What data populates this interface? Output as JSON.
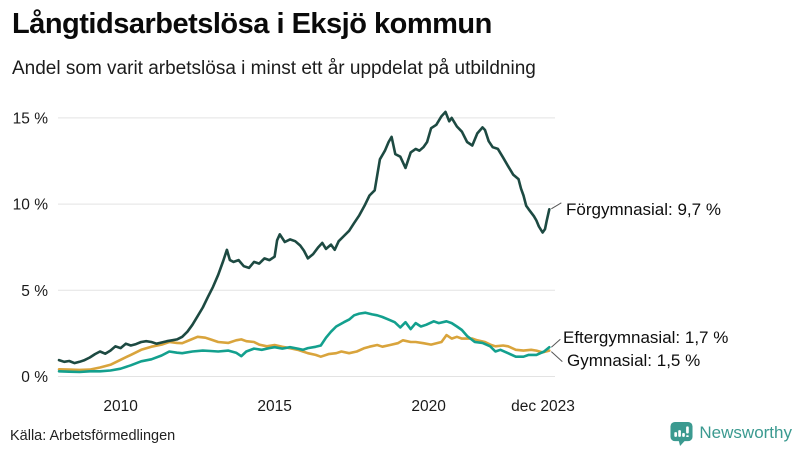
{
  "chart_data": {
    "type": "line",
    "title": "Långtidsarbetslösa i Eksjö kommun",
    "subtitle": "Andel som varit arbetslösa i minst ett år uppdelat på utbildning",
    "xlabel": "",
    "ylabel": "",
    "grid": true,
    "legend_position": "end-of-line-annotations",
    "x_axis": {
      "range": [
        2008,
        2024.2
      ],
      "ticks": [
        {
          "x": 2010,
          "label": "2010"
        },
        {
          "x": 2015,
          "label": "2015"
        },
        {
          "x": 2020,
          "label": "2020"
        },
        {
          "x": 2023.92,
          "label": "dec 2023"
        }
      ]
    },
    "y_axis": {
      "range": [
        0,
        15.8
      ],
      "ticks": [
        {
          "v": 0,
          "label": "0 %"
        },
        {
          "v": 5,
          "label": "5 %"
        },
        {
          "v": 10,
          "label": "10 %"
        },
        {
          "v": 15,
          "label": "15 %"
        }
      ]
    },
    "series": [
      {
        "name": "Gymnasial",
        "color": "#d9a43c",
        "end_label": "Gymnasial: 1,5 %",
        "end_value_text": "1,5 %",
        "points": [
          [
            2008.0,
            0.42
          ],
          [
            2008.33,
            0.4
          ],
          [
            2008.67,
            0.38
          ],
          [
            2009.0,
            0.4
          ],
          [
            2009.33,
            0.52
          ],
          [
            2009.67,
            0.68
          ],
          [
            2010.0,
            0.97
          ],
          [
            2010.33,
            1.25
          ],
          [
            2010.67,
            1.55
          ],
          [
            2011.0,
            1.73
          ],
          [
            2011.33,
            1.85
          ],
          [
            2011.58,
            2.0
          ],
          [
            2011.83,
            1.95
          ],
          [
            2012.0,
            1.93
          ],
          [
            2012.25,
            2.12
          ],
          [
            2012.5,
            2.3
          ],
          [
            2012.75,
            2.25
          ],
          [
            2012.92,
            2.15
          ],
          [
            2013.17,
            2.0
          ],
          [
            2013.5,
            1.95
          ],
          [
            2013.75,
            2.1
          ],
          [
            2013.92,
            2.15
          ],
          [
            2014.08,
            2.05
          ],
          [
            2014.33,
            2.0
          ],
          [
            2014.5,
            1.85
          ],
          [
            2014.75,
            1.75
          ],
          [
            2015.0,
            1.83
          ],
          [
            2015.25,
            1.72
          ],
          [
            2015.5,
            1.64
          ],
          [
            2015.75,
            1.55
          ],
          [
            2015.92,
            1.45
          ],
          [
            2016.08,
            1.35
          ],
          [
            2016.33,
            1.25
          ],
          [
            2016.5,
            1.15
          ],
          [
            2016.75,
            1.3
          ],
          [
            2017.0,
            1.35
          ],
          [
            2017.17,
            1.45
          ],
          [
            2017.42,
            1.35
          ],
          [
            2017.67,
            1.45
          ],
          [
            2017.92,
            1.65
          ],
          [
            2018.08,
            1.73
          ],
          [
            2018.33,
            1.83
          ],
          [
            2018.5,
            1.73
          ],
          [
            2018.75,
            1.83
          ],
          [
            2019.0,
            1.93
          ],
          [
            2019.17,
            2.1
          ],
          [
            2019.42,
            2.0
          ],
          [
            2019.58,
            2.0
          ],
          [
            2019.83,
            1.93
          ],
          [
            2020.08,
            1.85
          ],
          [
            2020.42,
            2.0
          ],
          [
            2020.58,
            2.4
          ],
          [
            2020.75,
            2.2
          ],
          [
            2020.92,
            2.3
          ],
          [
            2021.08,
            2.2
          ],
          [
            2021.42,
            2.2
          ],
          [
            2021.58,
            2.1
          ],
          [
            2021.83,
            2.0
          ],
          [
            2022.0,
            1.85
          ],
          [
            2022.17,
            1.75
          ],
          [
            2022.42,
            1.8
          ],
          [
            2022.58,
            1.75
          ],
          [
            2022.83,
            1.55
          ],
          [
            2023.08,
            1.5
          ],
          [
            2023.33,
            1.55
          ],
          [
            2023.5,
            1.5
          ],
          [
            2023.7,
            1.4
          ],
          [
            2023.92,
            1.5
          ]
        ]
      },
      {
        "name": "Eftergymnasial",
        "color": "#13a08e",
        "end_label": "Eftergymnasial: 1,7 %",
        "end_value_text": "1,7 %",
        "points": [
          [
            2008.0,
            0.3
          ],
          [
            2008.33,
            0.28
          ],
          [
            2008.67,
            0.26
          ],
          [
            2009.0,
            0.3
          ],
          [
            2009.33,
            0.3
          ],
          [
            2009.67,
            0.35
          ],
          [
            2010.0,
            0.45
          ],
          [
            2010.33,
            0.65
          ],
          [
            2010.67,
            0.88
          ],
          [
            2011.0,
            1.0
          ],
          [
            2011.33,
            1.22
          ],
          [
            2011.58,
            1.45
          ],
          [
            2011.83,
            1.38
          ],
          [
            2012.0,
            1.35
          ],
          [
            2012.33,
            1.45
          ],
          [
            2012.67,
            1.5
          ],
          [
            2012.92,
            1.48
          ],
          [
            2013.17,
            1.45
          ],
          [
            2013.5,
            1.5
          ],
          [
            2013.75,
            1.38
          ],
          [
            2013.92,
            1.18
          ],
          [
            2014.08,
            1.45
          ],
          [
            2014.33,
            1.62
          ],
          [
            2014.58,
            1.55
          ],
          [
            2014.83,
            1.65
          ],
          [
            2015.0,
            1.7
          ],
          [
            2015.25,
            1.62
          ],
          [
            2015.5,
            1.7
          ],
          [
            2015.75,
            1.62
          ],
          [
            2015.92,
            1.55
          ],
          [
            2016.08,
            1.65
          ],
          [
            2016.33,
            1.72
          ],
          [
            2016.5,
            1.8
          ],
          [
            2016.67,
            2.25
          ],
          [
            2016.83,
            2.6
          ],
          [
            2017.0,
            2.9
          ],
          [
            2017.25,
            3.15
          ],
          [
            2017.42,
            3.3
          ],
          [
            2017.58,
            3.55
          ],
          [
            2017.75,
            3.65
          ],
          [
            2017.95,
            3.7
          ],
          [
            2018.17,
            3.6
          ],
          [
            2018.33,
            3.55
          ],
          [
            2018.5,
            3.45
          ],
          [
            2018.7,
            3.3
          ],
          [
            2018.9,
            3.15
          ],
          [
            2019.08,
            2.85
          ],
          [
            2019.25,
            3.15
          ],
          [
            2019.42,
            2.75
          ],
          [
            2019.58,
            3.1
          ],
          [
            2019.75,
            2.9
          ],
          [
            2019.92,
            3.0
          ],
          [
            2020.17,
            3.2
          ],
          [
            2020.33,
            3.1
          ],
          [
            2020.58,
            3.2
          ],
          [
            2020.75,
            3.1
          ],
          [
            2020.92,
            2.9
          ],
          [
            2021.08,
            2.7
          ],
          [
            2021.25,
            2.35
          ],
          [
            2021.5,
            2.0
          ],
          [
            2021.75,
            1.95
          ],
          [
            2022.0,
            1.75
          ],
          [
            2022.17,
            1.45
          ],
          [
            2022.33,
            1.55
          ],
          [
            2022.58,
            1.35
          ],
          [
            2022.83,
            1.15
          ],
          [
            2023.08,
            1.15
          ],
          [
            2023.25,
            1.25
          ],
          [
            2023.5,
            1.25
          ],
          [
            2023.75,
            1.45
          ],
          [
            2023.92,
            1.7
          ]
        ]
      },
      {
        "name": "Förgymnasial",
        "color": "#1d4a42",
        "end_label": "Förgymnasial: 9,7 %",
        "end_value_text": "9,7 %",
        "points": [
          [
            2008.0,
            0.95
          ],
          [
            2008.17,
            0.85
          ],
          [
            2008.33,
            0.9
          ],
          [
            2008.5,
            0.78
          ],
          [
            2008.67,
            0.85
          ],
          [
            2008.83,
            0.95
          ],
          [
            2009.0,
            1.1
          ],
          [
            2009.17,
            1.3
          ],
          [
            2009.33,
            1.45
          ],
          [
            2009.5,
            1.32
          ],
          [
            2009.67,
            1.5
          ],
          [
            2009.83,
            1.75
          ],
          [
            2010.0,
            1.65
          ],
          [
            2010.17,
            1.9
          ],
          [
            2010.33,
            1.8
          ],
          [
            2010.5,
            1.88
          ],
          [
            2010.67,
            2.0
          ],
          [
            2010.83,
            2.05
          ],
          [
            2011.0,
            2.0
          ],
          [
            2011.17,
            1.9
          ],
          [
            2011.33,
            1.97
          ],
          [
            2011.5,
            2.05
          ],
          [
            2011.67,
            2.1
          ],
          [
            2011.83,
            2.15
          ],
          [
            2012.0,
            2.3
          ],
          [
            2012.17,
            2.6
          ],
          [
            2012.33,
            3.0
          ],
          [
            2012.5,
            3.5
          ],
          [
            2012.67,
            4.0
          ],
          [
            2012.83,
            4.6
          ],
          [
            2013.0,
            5.2
          ],
          [
            2013.17,
            5.9
          ],
          [
            2013.33,
            6.7
          ],
          [
            2013.45,
            7.35
          ],
          [
            2013.55,
            6.75
          ],
          [
            2013.67,
            6.65
          ],
          [
            2013.83,
            6.75
          ],
          [
            2014.0,
            6.4
          ],
          [
            2014.17,
            6.3
          ],
          [
            2014.33,
            6.65
          ],
          [
            2014.5,
            6.55
          ],
          [
            2014.67,
            6.85
          ],
          [
            2014.83,
            6.75
          ],
          [
            2015.0,
            6.95
          ],
          [
            2015.08,
            7.9
          ],
          [
            2015.17,
            8.25
          ],
          [
            2015.33,
            7.8
          ],
          [
            2015.5,
            7.95
          ],
          [
            2015.67,
            7.85
          ],
          [
            2015.83,
            7.6
          ],
          [
            2015.95,
            7.3
          ],
          [
            2016.08,
            6.85
          ],
          [
            2016.25,
            7.1
          ],
          [
            2016.42,
            7.5
          ],
          [
            2016.55,
            7.75
          ],
          [
            2016.67,
            7.4
          ],
          [
            2016.83,
            7.65
          ],
          [
            2016.95,
            7.35
          ],
          [
            2017.08,
            7.85
          ],
          [
            2017.25,
            8.15
          ],
          [
            2017.42,
            8.45
          ],
          [
            2017.58,
            8.9
          ],
          [
            2017.75,
            9.35
          ],
          [
            2017.92,
            9.9
          ],
          [
            2018.08,
            10.5
          ],
          [
            2018.25,
            10.8
          ],
          [
            2018.42,
            12.6
          ],
          [
            2018.58,
            13.1
          ],
          [
            2018.7,
            13.6
          ],
          [
            2018.8,
            13.9
          ],
          [
            2018.92,
            12.9
          ],
          [
            2019.08,
            12.75
          ],
          [
            2019.25,
            12.1
          ],
          [
            2019.42,
            13.0
          ],
          [
            2019.58,
            13.2
          ],
          [
            2019.7,
            13.1
          ],
          [
            2019.83,
            13.3
          ],
          [
            2019.95,
            13.6
          ],
          [
            2020.08,
            14.4
          ],
          [
            2020.25,
            14.6
          ],
          [
            2020.42,
            15.1
          ],
          [
            2020.55,
            15.35
          ],
          [
            2020.67,
            14.8
          ],
          [
            2020.75,
            15.0
          ],
          [
            2020.92,
            14.5
          ],
          [
            2021.08,
            14.2
          ],
          [
            2021.25,
            13.6
          ],
          [
            2021.42,
            13.4
          ],
          [
            2021.58,
            14.1
          ],
          [
            2021.75,
            14.45
          ],
          [
            2021.83,
            14.3
          ],
          [
            2021.95,
            13.65
          ],
          [
            2022.08,
            13.3
          ],
          [
            2022.25,
            13.2
          ],
          [
            2022.42,
            12.7
          ],
          [
            2022.58,
            12.2
          ],
          [
            2022.75,
            11.7
          ],
          [
            2022.92,
            11.45
          ],
          [
            2023.0,
            10.9
          ],
          [
            2023.08,
            10.5
          ],
          [
            2023.17,
            9.9
          ],
          [
            2023.25,
            9.7
          ],
          [
            2023.42,
            9.3
          ],
          [
            2023.5,
            9.05
          ],
          [
            2023.58,
            8.7
          ],
          [
            2023.7,
            8.35
          ],
          [
            2023.78,
            8.55
          ],
          [
            2023.83,
            9.0
          ],
          [
            2023.92,
            9.7
          ]
        ]
      }
    ]
  },
  "footer": {
    "source": "Källa: Arbetsförmedlingen",
    "brand": "Newsworthy"
  },
  "colors": {
    "forgymnasial": "#1d4a42",
    "eftergymnasial": "#13a08e",
    "gymnasial": "#d9a43c",
    "brand_teal": "#3b9a90",
    "gridline": "#e3e3e3"
  }
}
